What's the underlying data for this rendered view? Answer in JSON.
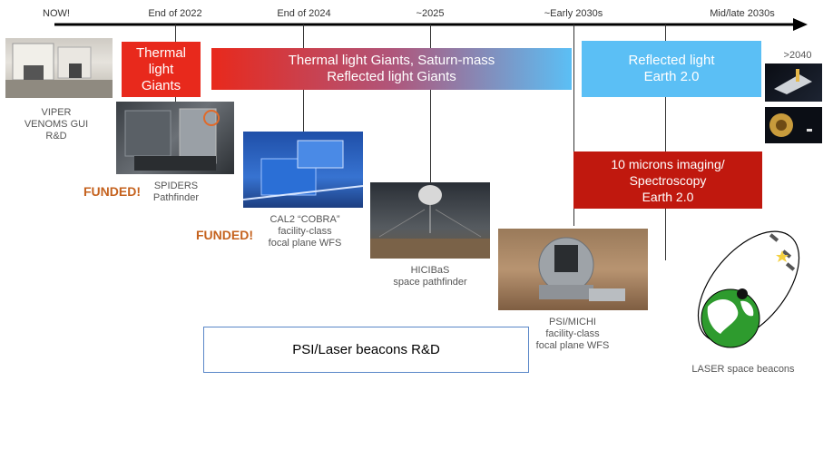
{
  "timeline": {
    "ticks": [
      "NOW!",
      "End of 2022",
      "End of 2024",
      "~2025",
      "~Early 2030s",
      "Mid/late 2030s"
    ]
  },
  "boxes": {
    "thermal_giants": "Thermal\nlight\nGiants",
    "thermal_saturn": "Thermal light Giants, Saturn-mass\nReflected light Giants",
    "reflected_earth": "Reflected light\nEarth 2.0",
    "ten_microns": "10 microns imaging/\nSpectroscopy\nEarth 2.0",
    "laser_rd": "PSI/Laser beacons R&D"
  },
  "captions": {
    "viper": "VIPER\nVENOMS GUI\nR&D",
    "spiders": "SPIDERS\nPathfinder",
    "cal2": "CAL2 “COBRA”\nfacility-class\nfocal plane WFS",
    "hicibas": "HICIBaS\nspace pathfinder",
    "psi": "PSI/MICHI\nfacility-class\nfocal plane WFS",
    "laser": "LASER space beacons",
    "year_2040": ">2040"
  },
  "badges": {
    "funded_1": "FUNDED!",
    "funded_2": "FUNDED!"
  },
  "colors": {
    "red": "#e8291c",
    "blue": "#5bbff5",
    "dark_red": "#c0180e",
    "funded": "#c5621e"
  }
}
